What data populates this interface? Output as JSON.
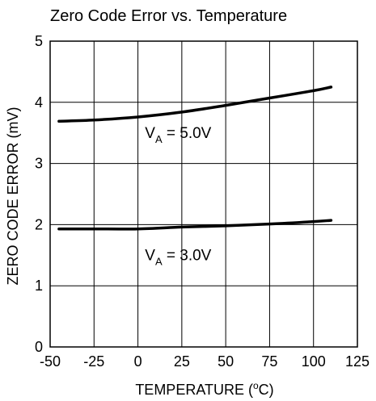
{
  "chart_data": {
    "type": "line",
    "title": "Zero Code Error vs. Temperature",
    "xlabel": "TEMPERATURE (",
    "xlabel_sup": "o",
    "xlabel_unit": "C)",
    "ylabel": "ZERO CODE ERROR (mV)",
    "xlim": [
      -50,
      125
    ],
    "ylim": [
      0,
      5
    ],
    "xticks": [
      -50,
      -25,
      0,
      25,
      50,
      75,
      100,
      125
    ],
    "yticks": [
      0,
      1,
      2,
      3,
      4,
      5
    ],
    "grid": true,
    "series": [
      {
        "name": "",
        "x": [
          -45,
          -25,
          0,
          25,
          50,
          75,
          100,
          110
        ],
        "y": [
          3.69,
          3.71,
          3.76,
          3.84,
          3.95,
          4.07,
          4.19,
          4.25
        ]
      },
      {
        "name": "",
        "x": [
          -45,
          -25,
          0,
          25,
          50,
          75,
          100,
          110
        ],
        "y": [
          1.93,
          1.93,
          1.93,
          1.96,
          1.98,
          2.01,
          2.05,
          2.07
        ]
      }
    ],
    "annotations": [
      {
        "main": "V",
        "sub": "A",
        "rest": " = 5.0V",
        "x": 4,
        "y": 3.42
      },
      {
        "main": "V",
        "sub": "A",
        "rest": " = 3.0V",
        "x": 4,
        "y": 1.42
      }
    ],
    "line_color": "#000000"
  }
}
